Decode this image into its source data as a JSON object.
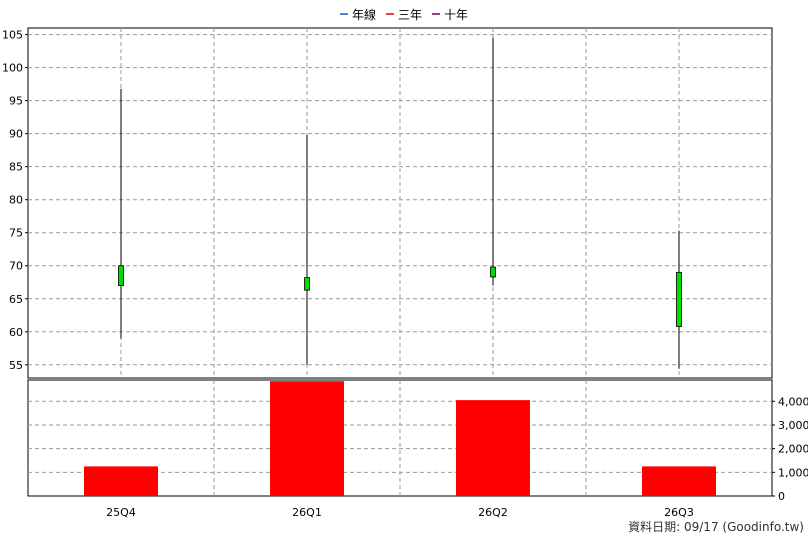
{
  "legend": {
    "items": [
      {
        "label": "年線",
        "color": "#1f4fd0"
      },
      {
        "label": "三年",
        "color": "#e00000"
      },
      {
        "label": "十年",
        "color": "#800060"
      }
    ]
  },
  "footer": {
    "text": "資料日期: 09/17  (Goodinfo.tw)"
  },
  "chart_data": {
    "type": "candlestick",
    "categories": [
      "25Q4",
      "26Q1",
      "26Q2",
      "26Q3"
    ],
    "price": {
      "ylim": [
        53,
        106
      ],
      "ticks": [
        55,
        60,
        65,
        70,
        75,
        80,
        85,
        90,
        95,
        100,
        105
      ],
      "ohlc": [
        {
          "open": 67.0,
          "high": 96.8,
          "low": 59.0,
          "close": 70.0
        },
        {
          "open": 66.3,
          "high": 89.8,
          "low": 55.0,
          "close": 68.2
        },
        {
          "open": 68.3,
          "high": 104.5,
          "low": 67.0,
          "close": 69.8
        },
        {
          "open": 60.8,
          "high": 75.3,
          "low": 54.4,
          "close": 69.0
        }
      ],
      "candle_color": "#00dd00",
      "wick_color": "#000000"
    },
    "volume": {
      "ylim": [
        0,
        4900
      ],
      "ticks": [
        0,
        1000,
        2000,
        3000,
        4000
      ],
      "tick_labels": [
        "0",
        "1,000",
        "2,000",
        "3,000",
        "4,000"
      ],
      "values": [
        1250,
        4850,
        4050,
        1250
      ],
      "color": "#ff0000"
    },
    "grid": true
  }
}
